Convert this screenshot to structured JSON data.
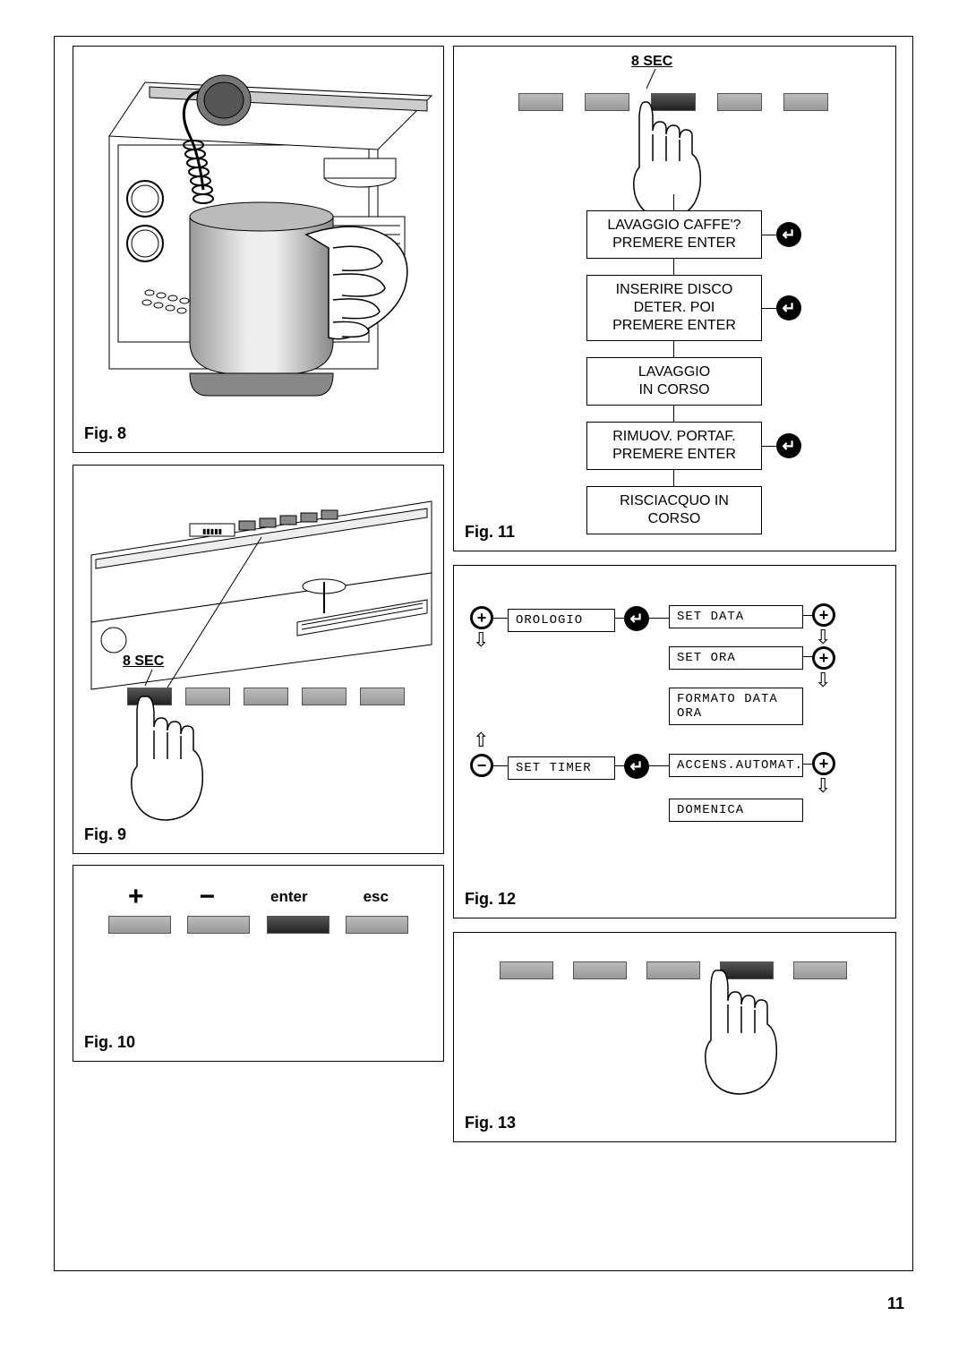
{
  "pageNumber": "11",
  "fig8": {
    "label": "Fig. 8"
  },
  "fig9": {
    "label": "Fig. 9",
    "pressDuration": "8 SEC"
  },
  "fig10": {
    "label": "Fig. 10",
    "btnLabels": [
      "+",
      "−",
      "enter",
      "esc"
    ]
  },
  "fig11": {
    "label": "Fig. 11",
    "pressDuration": "8 SEC",
    "steps": [
      {
        "lines": [
          "LAVAGGIO CAFFE'?",
          "PREMERE ENTER"
        ],
        "enter": true
      },
      {
        "lines": [
          "INSERIRE DISCO",
          "DETER. POI",
          "PREMERE ENTER"
        ],
        "enter": true
      },
      {
        "lines": [
          "LAVAGGIO",
          "IN CORSO"
        ],
        "enter": false
      },
      {
        "lines": [
          "RIMUOV. PORTAF.",
          "PREMERE ENTER"
        ],
        "enter": true
      },
      {
        "lines": [
          "RISCIACQUO IN",
          "CORSO"
        ],
        "enter": false
      }
    ]
  },
  "fig12": {
    "label": "Fig. 12",
    "col1": [
      {
        "text": "OROLOGIO"
      },
      {
        "text": "SET TIMER"
      }
    ],
    "col2top": [
      {
        "text": "SET DATA"
      },
      {
        "text": "SET ORA"
      },
      {
        "text": "FORMATO DATA\nORA"
      }
    ],
    "col2bot": [
      {
        "text": "ACCENS.AUTOMAT."
      },
      {
        "text": "DOMENICA"
      }
    ]
  },
  "fig13": {
    "label": "Fig. 13"
  }
}
